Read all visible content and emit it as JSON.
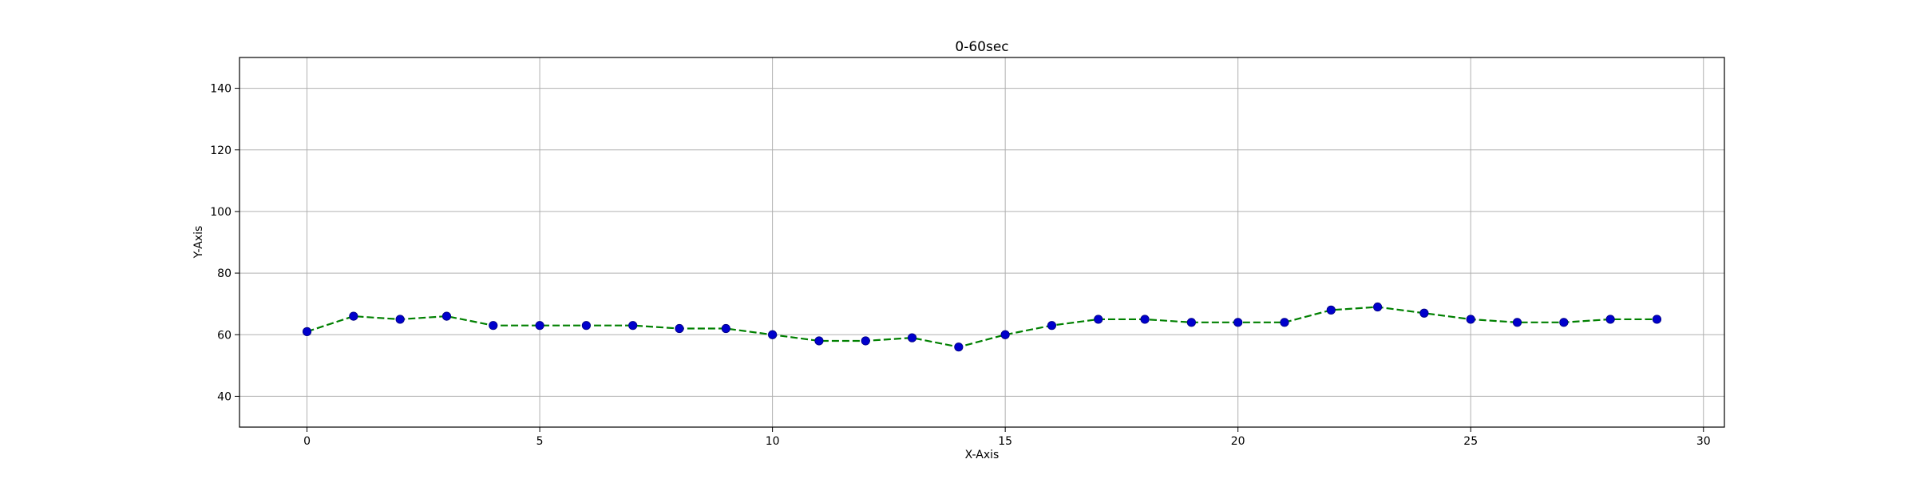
{
  "chart_data": {
    "type": "line",
    "title": "0-60sec",
    "xlabel": "X-Axis",
    "ylabel": "Y-Axis",
    "xlim": [
      -1.45,
      30.45
    ],
    "ylim": [
      30,
      150
    ],
    "xticks": [
      0,
      5,
      10,
      15,
      20,
      25,
      30
    ],
    "yticks": [
      40,
      60,
      80,
      100,
      120,
      140
    ],
    "grid": true,
    "colors": {
      "line": "#008000",
      "marker": "#0000cc",
      "grid": "#b0b0b0",
      "frame": "#000000"
    },
    "series": [
      {
        "x": [
          0,
          1,
          2,
          3,
          4,
          5,
          6,
          7,
          8,
          9,
          10,
          11,
          12,
          13,
          14,
          15,
          16,
          17,
          18,
          19,
          20,
          21,
          22,
          23,
          24,
          25,
          26,
          27,
          28,
          29
        ],
        "y": [
          61,
          66,
          65,
          66,
          63,
          63,
          63,
          63,
          62,
          62,
          60,
          58,
          58,
          59,
          56,
          60,
          63,
          65,
          65,
          64,
          64,
          64,
          68,
          69,
          67,
          65,
          64,
          64,
          65,
          65
        ]
      }
    ]
  }
}
